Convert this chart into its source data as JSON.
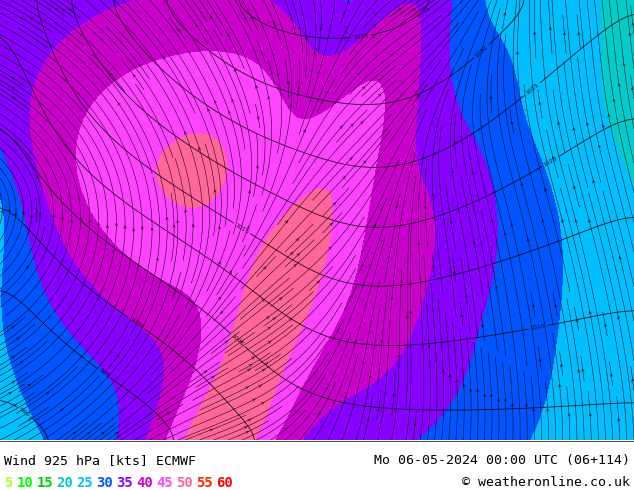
{
  "title_left": "Wind 925 hPa [kts] ECMWF",
  "title_right": "Mo 06-05-2024 00:00 UTC (06+114)",
  "copyright": "© weatheronline.co.uk",
  "legend_values": [
    5,
    10,
    15,
    20,
    25,
    30,
    35,
    40,
    45,
    50,
    55,
    60
  ],
  "legend_colors": [
    "#adff2f",
    "#00ff00",
    "#00cc00",
    "#00cccc",
    "#00bfff",
    "#0055ff",
    "#8800ff",
    "#cc00cc",
    "#ff44ff",
    "#ff6699",
    "#ff2200",
    "#ff0000"
  ],
  "bg_color": "#ffffff",
  "title_fontsize": 9.5,
  "legend_fontsize": 10,
  "fig_width": 6.34,
  "fig_height": 4.9,
  "dpi": 100,
  "title_color": "#000000",
  "copyright_color": "#000000",
  "map_white_bg": "#ffffff",
  "wind_colors": [
    "#ffffff",
    "#adff2f",
    "#00ff00",
    "#00cc00",
    "#00cccc",
    "#00bfff",
    "#0055ff",
    "#8800ff",
    "#cc00cc",
    "#ff44ff",
    "#ff6699",
    "#ff2200",
    "#ff0000"
  ],
  "wind_levels": [
    0,
    5,
    10,
    15,
    20,
    25,
    30,
    35,
    40,
    45,
    50,
    55,
    60
  ]
}
